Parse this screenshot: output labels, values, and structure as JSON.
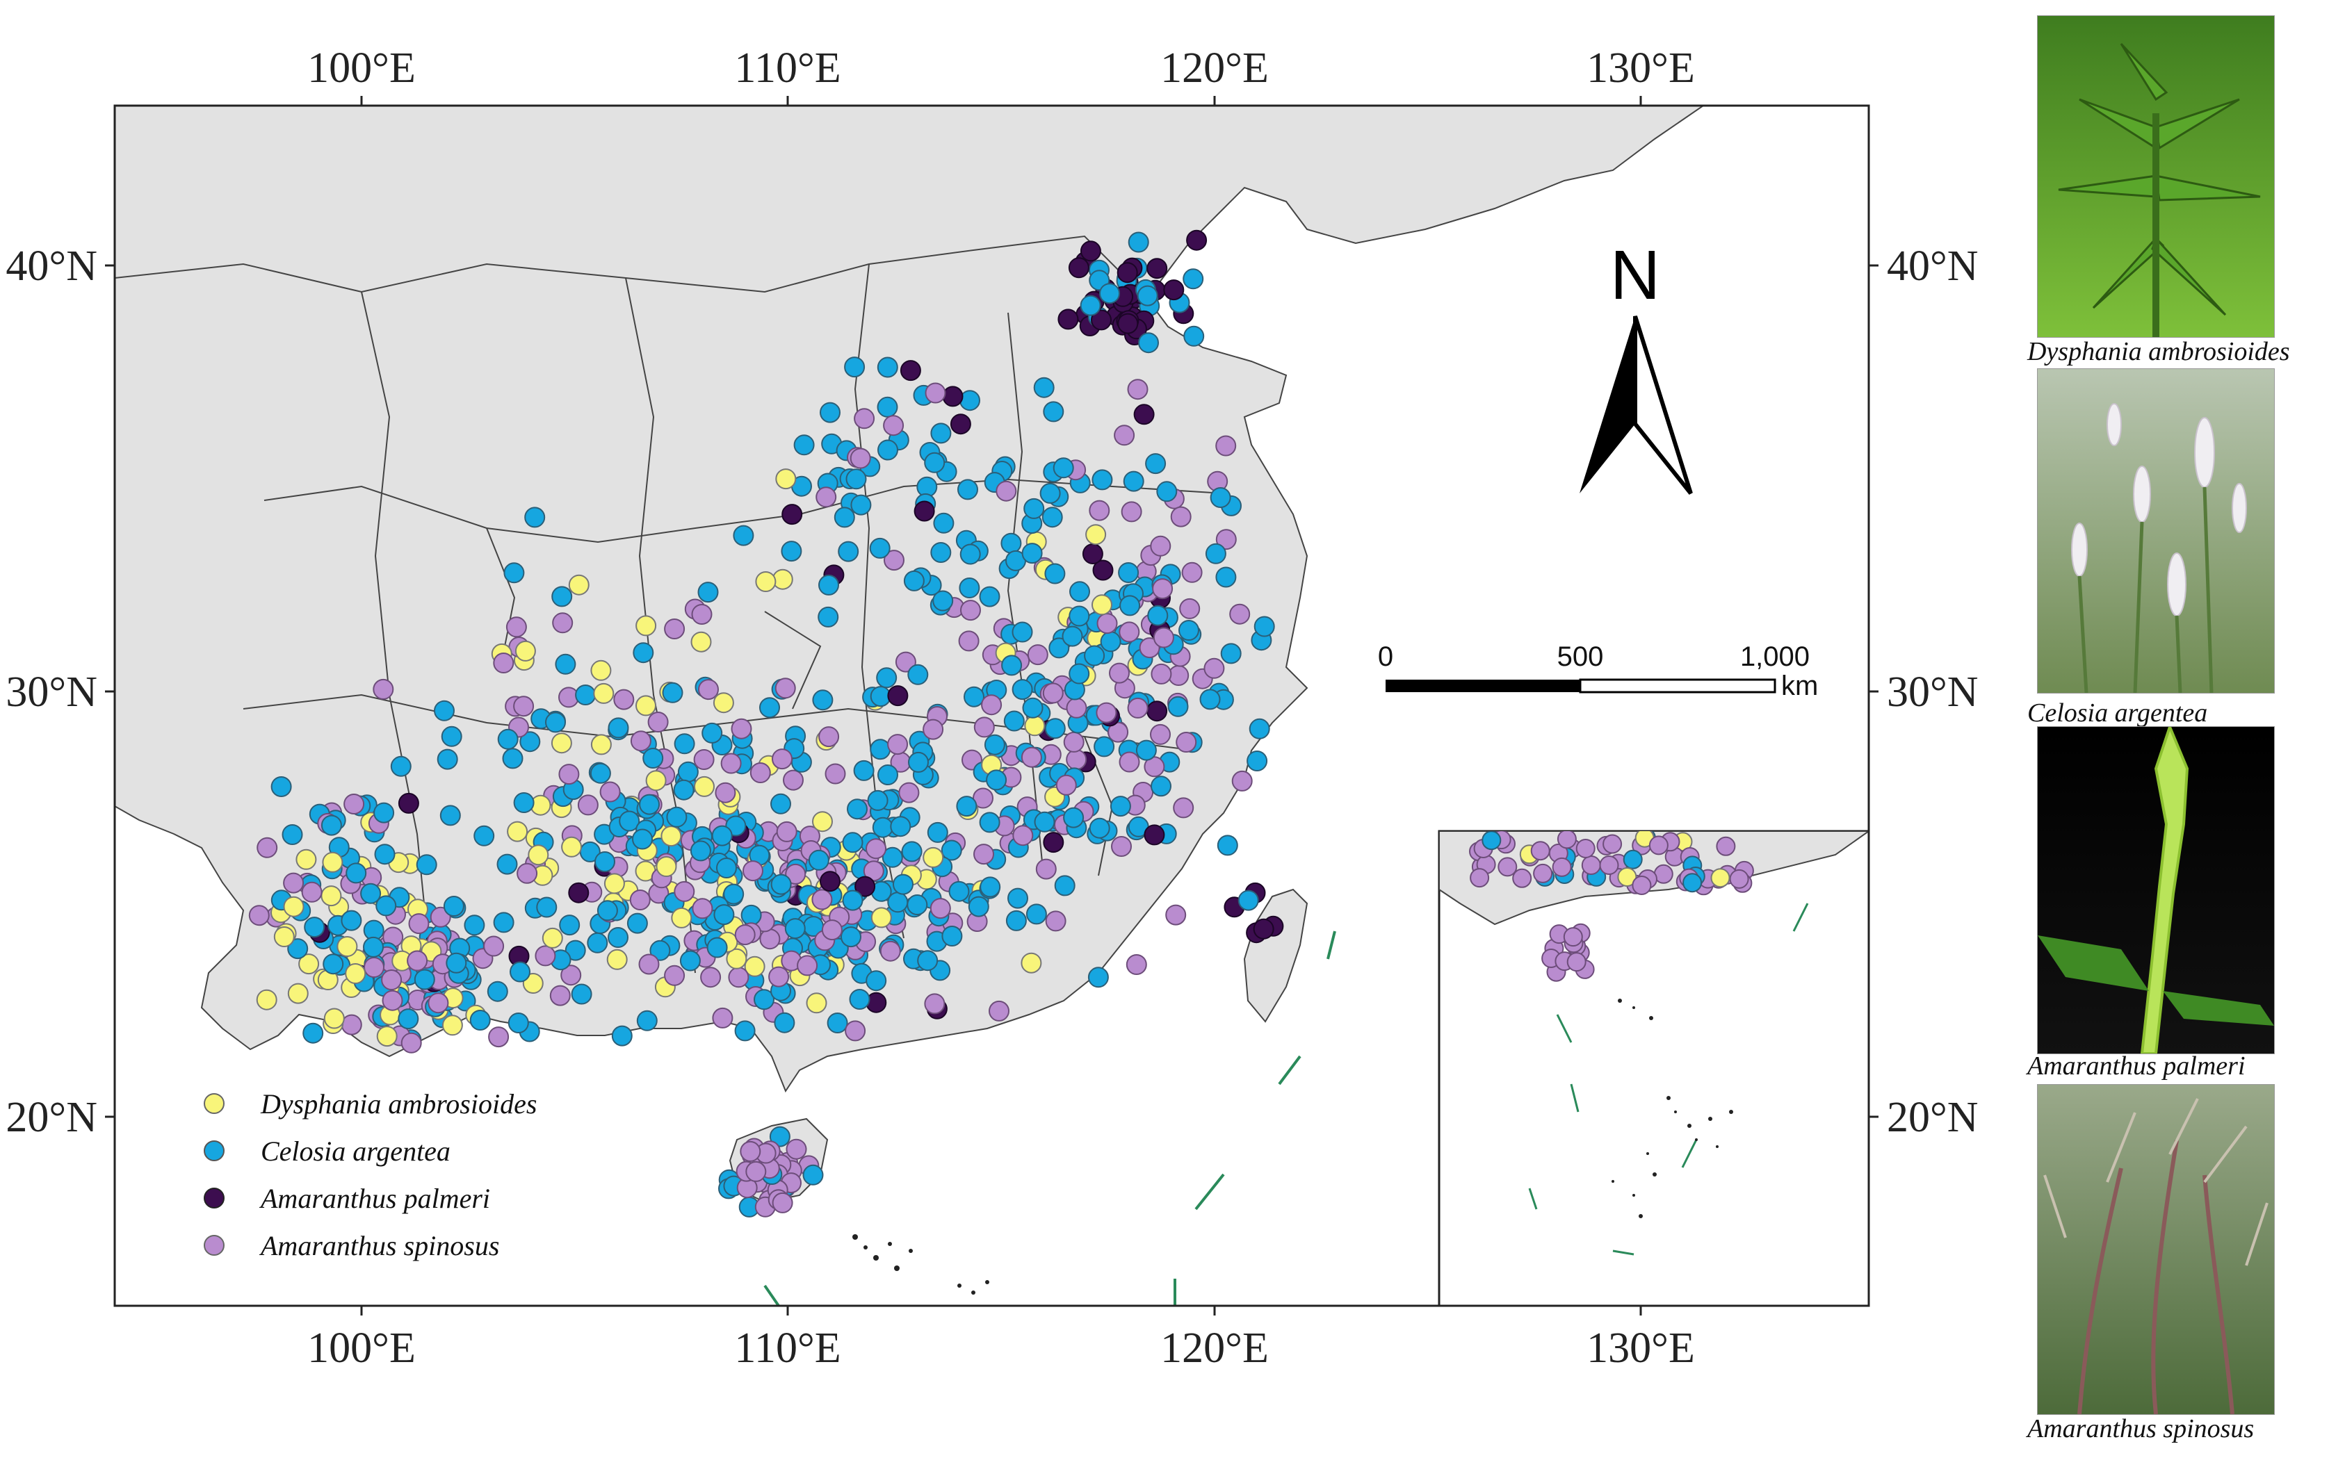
{
  "map": {
    "axis_labels": {
      "lon": [
        "100°E",
        "110°E",
        "120°E",
        "130°E"
      ],
      "lat": [
        "40°N",
        "30°N",
        "20°N"
      ]
    },
    "north_arrow_label": "N",
    "scale_bar": {
      "ticks": [
        "0",
        "500",
        "1,000"
      ],
      "unit": "km"
    },
    "legend": [
      {
        "label": "Dysphania ambrosioides",
        "color": "#f8f57a"
      },
      {
        "label": "Celosia argentea",
        "color": "#16a6e0"
      },
      {
        "label": "Amaranthus palmeri",
        "color": "#3c0d4f"
      },
      {
        "label": "Amaranthus spinosus",
        "color": "#b98ccf"
      }
    ],
    "colors": {
      "land": "#e2e2e2",
      "border": "#444444",
      "sea_boundary": "#2a8a5a"
    }
  },
  "photos": [
    {
      "caption": "Dysphania ambrosioides",
      "icon": "green-leafy-plant"
    },
    {
      "caption": "Celosia argentea",
      "icon": "silver-flower-spikes"
    },
    {
      "caption": "Amaranthus palmeri",
      "icon": "spiky-green-inflorescence"
    },
    {
      "caption": "Amaranthus spinosus",
      "icon": "reddish-seed-spikes"
    }
  ]
}
